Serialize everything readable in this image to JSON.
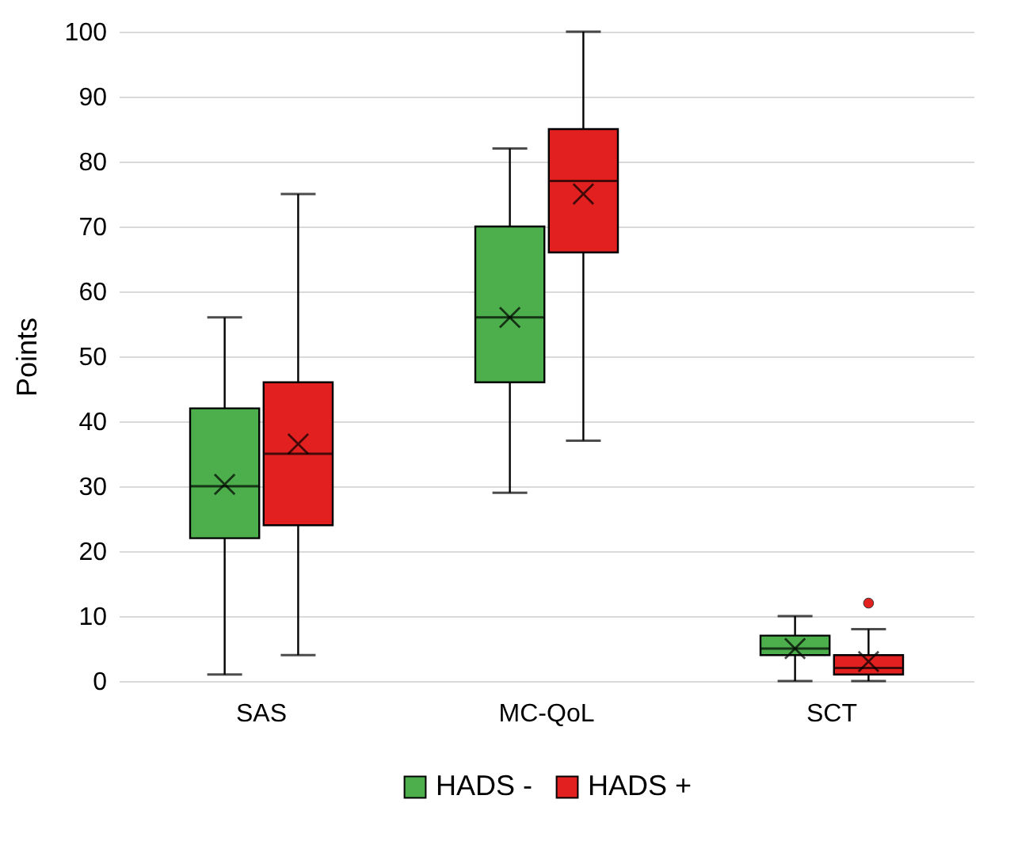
{
  "chart_data": {
    "type": "box",
    "ylabel": "Points",
    "categories": [
      "SAS",
      "MC-QoL",
      "SCT"
    ],
    "ylim": [
      0,
      100
    ],
    "yticks": [
      0,
      10,
      20,
      30,
      40,
      50,
      60,
      70,
      80,
      90,
      100
    ],
    "grid": "y",
    "legend": "bottom",
    "series": [
      {
        "name": "HADS -",
        "color": "#4caf4c",
        "boxes": [
          {
            "low": 1,
            "q1": 22,
            "median": 30,
            "q3": 42,
            "high": 56,
            "mean": 30.3
          },
          {
            "low": 29,
            "q1": 46,
            "median": 56,
            "q3": 70,
            "high": 82,
            "mean": 56
          },
          {
            "low": 0,
            "q1": 4,
            "median": 5,
            "q3": 7,
            "high": 10,
            "mean": 5
          }
        ]
      },
      {
        "name": "HADS +",
        "color": "#e32020",
        "boxes": [
          {
            "low": 4,
            "q1": 24,
            "median": 35,
            "q3": 46,
            "high": 75,
            "mean": 36.5
          },
          {
            "low": 37,
            "q1": 66,
            "median": 77,
            "q3": 85,
            "high": 100,
            "mean": 75
          },
          {
            "low": 0,
            "q1": 1,
            "median": 2,
            "q3": 4,
            "high": 8,
            "mean": 3,
            "outliers": [
              12
            ]
          }
        ]
      }
    ]
  }
}
